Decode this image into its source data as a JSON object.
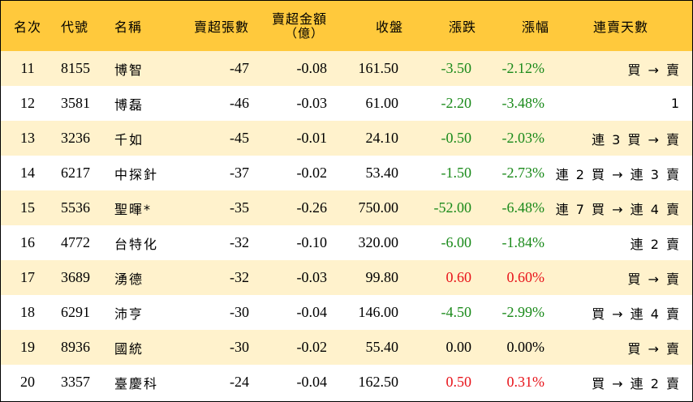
{
  "headers": {
    "rank": "名次",
    "code": "代號",
    "name": "名稱",
    "net_sell_lots": "賣超張數",
    "net_sell_amount": "賣超金額",
    "net_sell_amount_unit": "（億）",
    "close": "收盤",
    "change": "漲跌",
    "change_pct": "漲幅",
    "streak": "連賣天數"
  },
  "colors": {
    "header_bg": "#ffc93c",
    "stripe": "#fff2cc",
    "up": "#e8141b",
    "down": "#1a8a1a",
    "flat": "#000000"
  },
  "rows": [
    {
      "rank": "11",
      "code": "8155",
      "name": "博智",
      "lots": "-47",
      "amount": "-0.08",
      "close": "161.50",
      "change": "-3.50",
      "pct": "-2.12%",
      "dir": "down",
      "streak": "買 → 賣"
    },
    {
      "rank": "12",
      "code": "3581",
      "name": "博磊",
      "lots": "-46",
      "amount": "-0.03",
      "close": "61.00",
      "change": "-2.20",
      "pct": "-3.48%",
      "dir": "down",
      "streak": "1"
    },
    {
      "rank": "13",
      "code": "3236",
      "name": "千如",
      "lots": "-45",
      "amount": "-0.01",
      "close": "24.10",
      "change": "-0.50",
      "pct": "-2.03%",
      "dir": "down",
      "streak": "連 3 買 → 賣"
    },
    {
      "rank": "14",
      "code": "6217",
      "name": "中探針",
      "lots": "-37",
      "amount": "-0.02",
      "close": "53.40",
      "change": "-1.50",
      "pct": "-2.73%",
      "dir": "down",
      "streak": "連 2 買 → 連 3 賣"
    },
    {
      "rank": "15",
      "code": "5536",
      "name": "聖暉*",
      "lots": "-35",
      "amount": "-0.26",
      "close": "750.00",
      "change": "-52.00",
      "pct": "-6.48%",
      "dir": "down",
      "streak": "連 7 買 → 連 4 賣"
    },
    {
      "rank": "16",
      "code": "4772",
      "name": "台特化",
      "lots": "-32",
      "amount": "-0.10",
      "close": "320.00",
      "change": "-6.00",
      "pct": "-1.84%",
      "dir": "down",
      "streak": "連 2 賣"
    },
    {
      "rank": "17",
      "code": "3689",
      "name": "湧德",
      "lots": "-32",
      "amount": "-0.03",
      "close": "99.80",
      "change": "0.60",
      "pct": "0.60%",
      "dir": "up",
      "streak": "買 → 賣"
    },
    {
      "rank": "18",
      "code": "6291",
      "name": "沛亨",
      "lots": "-30",
      "amount": "-0.04",
      "close": "146.00",
      "change": "-4.50",
      "pct": "-2.99%",
      "dir": "down",
      "streak": "買 → 連 4 賣"
    },
    {
      "rank": "19",
      "code": "8936",
      "name": "國統",
      "lots": "-30",
      "amount": "-0.02",
      "close": "55.40",
      "change": "0.00",
      "pct": "0.00%",
      "dir": "flat",
      "streak": "買 → 賣"
    },
    {
      "rank": "20",
      "code": "3357",
      "name": "臺慶科",
      "lots": "-24",
      "amount": "-0.04",
      "close": "162.50",
      "change": "0.50",
      "pct": "0.31%",
      "dir": "up",
      "streak": "買 → 連 2 賣"
    }
  ]
}
